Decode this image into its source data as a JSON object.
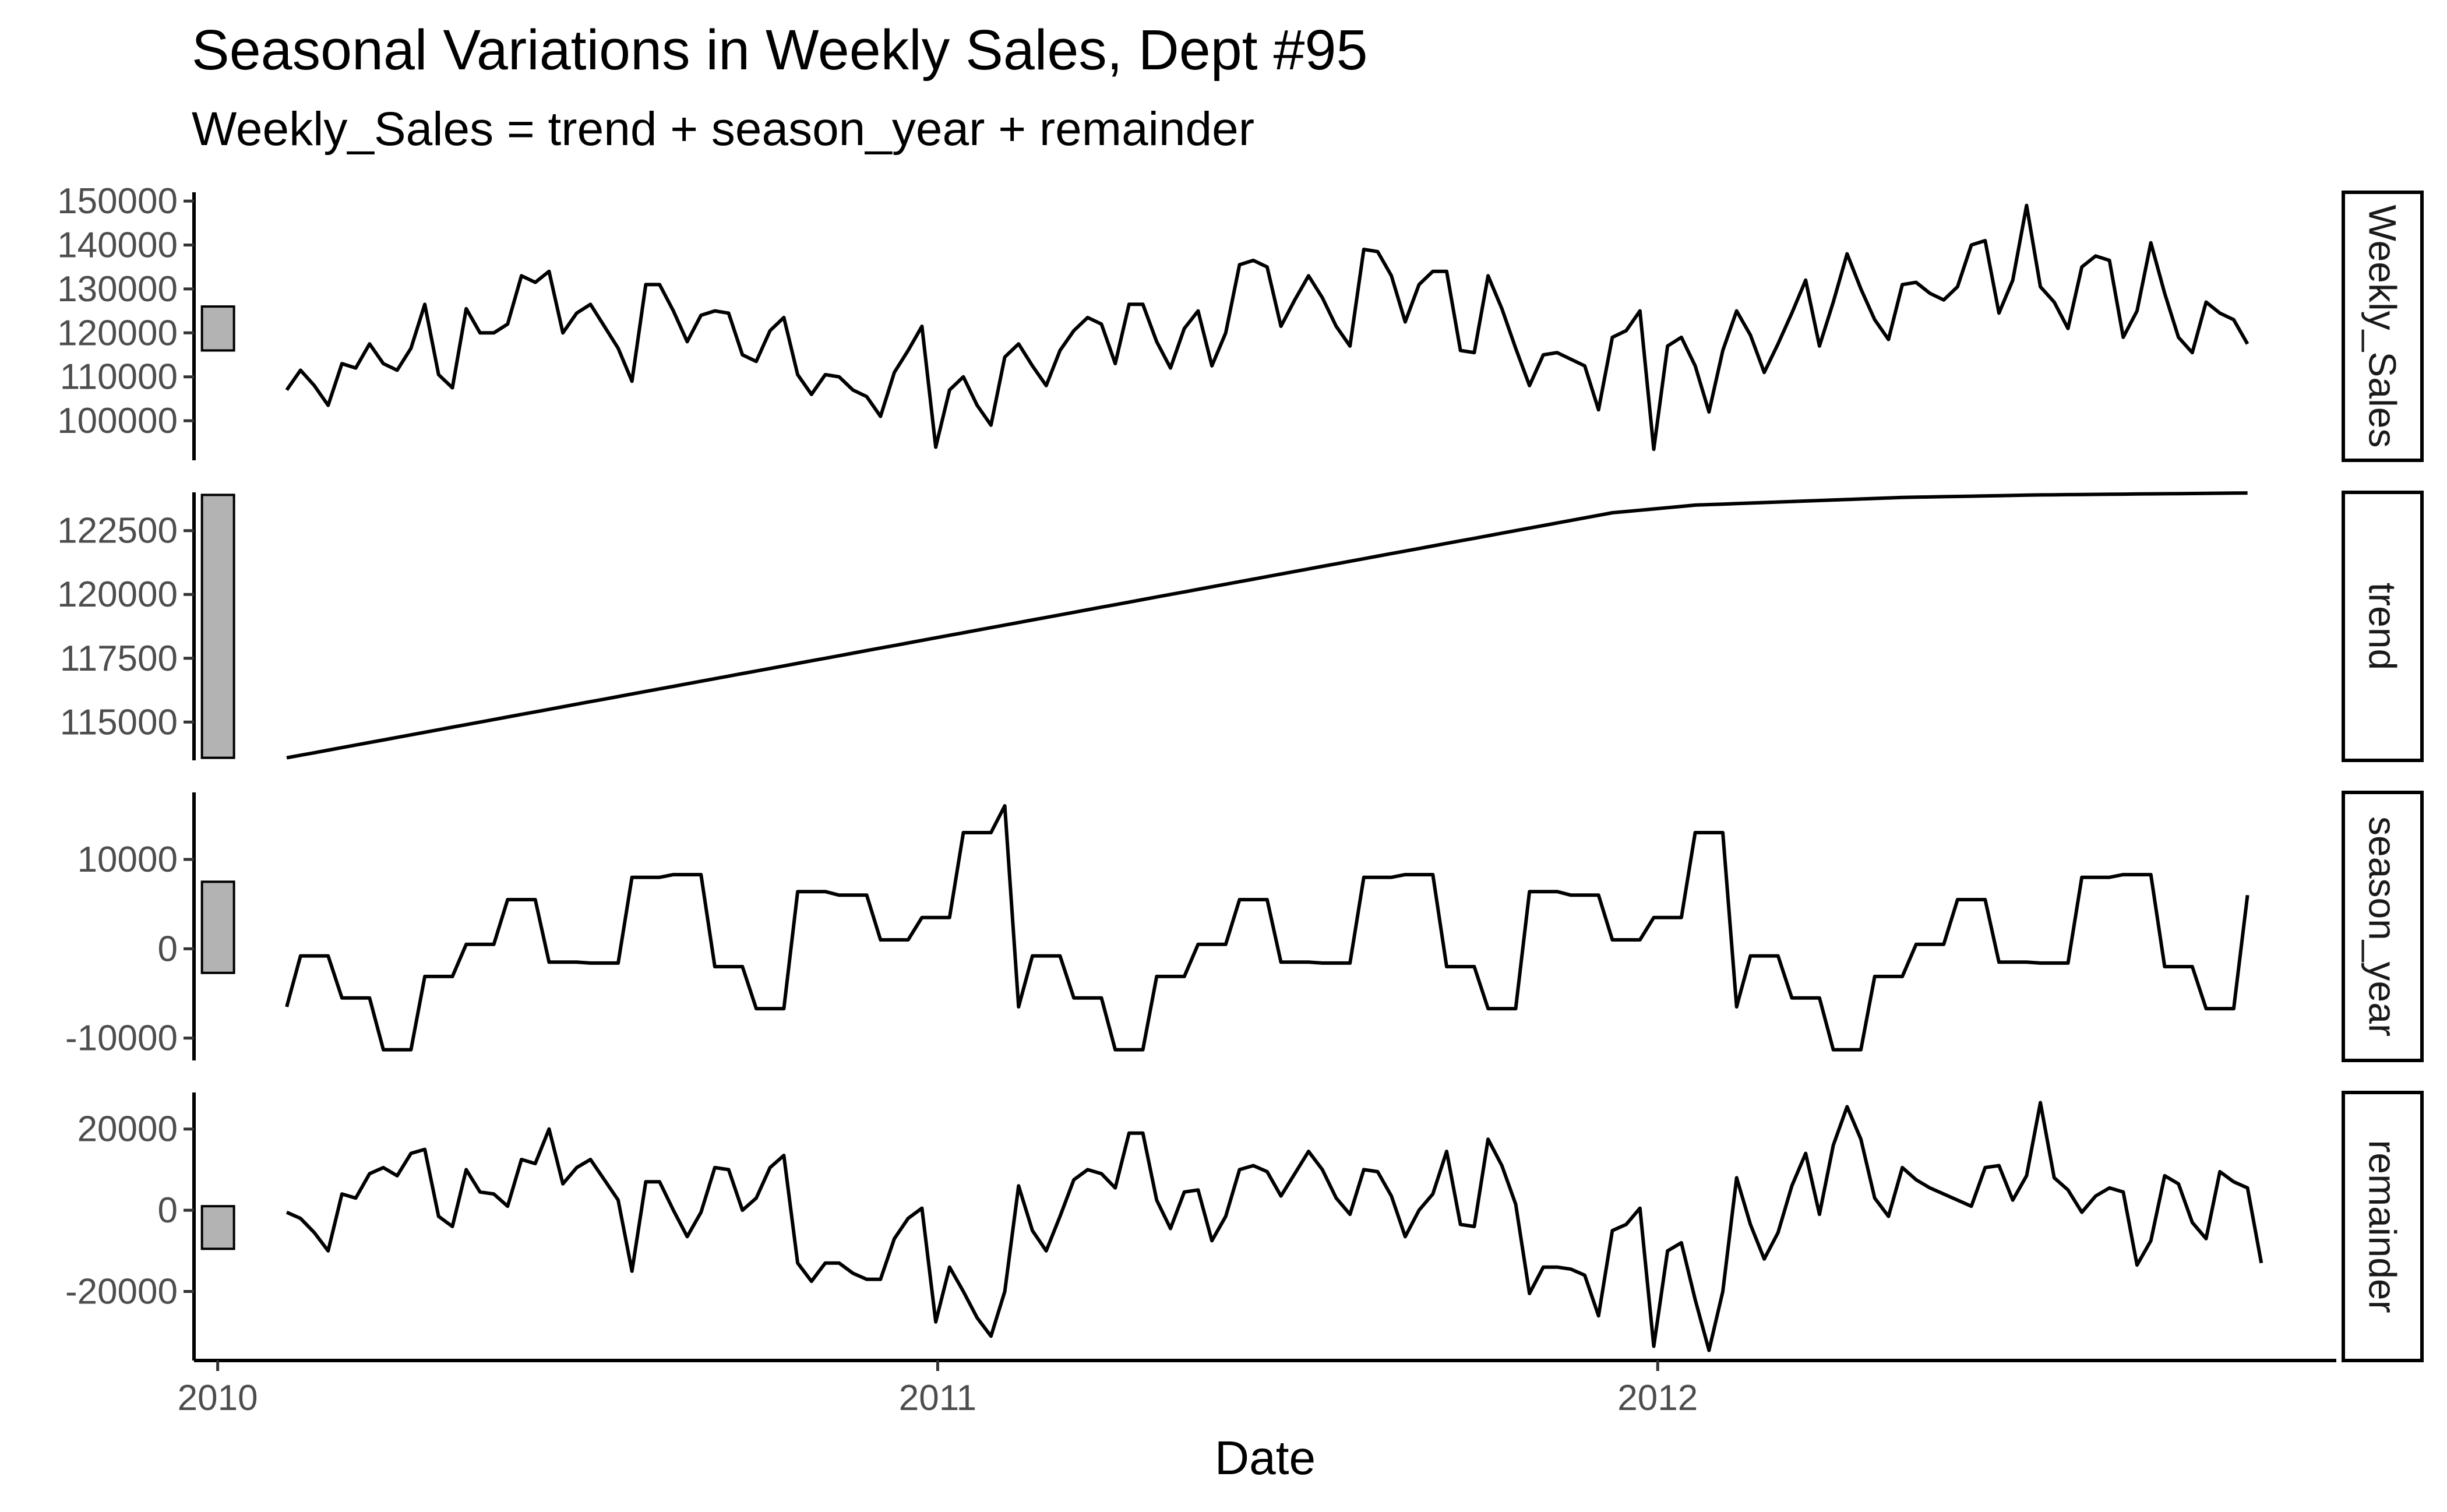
{
  "chart_data": {
    "type": "line",
    "title": "Seasonal Variations in Weekly Sales, Dept #95",
    "subtitle": "Weekly_Sales = trend + season_year + remainder",
    "xlabel": "Date",
    "x_ticks": [
      "2010",
      "2011",
      "2012"
    ],
    "x_start": "2010-02-05",
    "x_step_days": 7,
    "xlim": [
      "2009-12-20",
      "2012-12-10"
    ],
    "panels": [
      {
        "name": "Weekly_Sales",
        "ylim": [
          91000,
          152000
        ],
        "y_ticks": [
          "100000",
          "110000",
          "120000",
          "130000",
          "140000",
          "150000"
        ],
        "range_bar": [
          116000,
          126000
        ],
        "values": [
          107000,
          111500,
          108000,
          103500,
          113000,
          112000,
          117500,
          113000,
          111500,
          116500,
          126500,
          110500,
          107500,
          125500,
          120000,
          120000,
          122000,
          133000,
          131500,
          134000,
          120000,
          124500,
          126500,
          121500,
          116500,
          109000,
          131000,
          131000,
          125000,
          118000,
          124000,
          125000,
          124500,
          115000,
          113500,
          120500,
          123500,
          110500,
          106000,
          110500,
          110000,
          107000,
          105500,
          101000,
          111000,
          116000,
          121500,
          94000,
          107000,
          110000,
          103500,
          99000,
          114500,
          117500,
          112500,
          108000,
          116000,
          120500,
          123500,
          122000,
          113000,
          126500,
          126500,
          118000,
          112000,
          121000,
          125000,
          112500,
          120000,
          135500,
          136500,
          135000,
          121500,
          127500,
          133000,
          128000,
          121500,
          117000,
          139000,
          138500,
          133000,
          122500,
          131000,
          134000,
          134000,
          116000,
          115500,
          133000,
          125500,
          116500,
          108000,
          115000,
          115500,
          114000,
          112500,
          102500,
          119000,
          120500,
          125000,
          93500,
          117000,
          119000,
          112500,
          102000,
          116000,
          125000,
          119500,
          111000,
          117500,
          124500,
          132000,
          117000,
          127000,
          138000,
          130000,
          123000,
          118500,
          131000,
          131500,
          129000,
          127500,
          130500,
          140000,
          141000,
          124500,
          132000,
          149000,
          130500,
          127000,
          121000,
          135000,
          137500,
          136500,
          119000,
          125000,
          140500,
          129000,
          119000,
          115500,
          127000,
          124500,
          123000,
          117500
        ]
      },
      {
        "name": "trend",
        "ylim": [
          113500,
          124000
        ],
        "y_ticks": [
          "115000",
          "117500",
          "120000",
          "122500"
        ],
        "range_bar": [
          113600,
          123900
        ],
        "values": [
          113600,
          113700,
          113800,
          113900,
          114000,
          114100,
          114200,
          114300,
          114400,
          114500,
          114600,
          114700,
          114800,
          114900,
          115000,
          115100,
          115200,
          115300,
          115400,
          115500,
          115600,
          115700,
          115800,
          115900,
          116000,
          116100,
          116200,
          116300,
          116400,
          116500,
          116600,
          116700,
          116800,
          116900,
          117000,
          117100,
          117200,
          117300,
          117400,
          117500,
          117600,
          117700,
          117800,
          117900,
          118000,
          118100,
          118200,
          118300,
          118400,
          118500,
          118600,
          118700,
          118800,
          118900,
          119000,
          119100,
          119200,
          119300,
          119400,
          119500,
          119600,
          119700,
          119800,
          119900,
          120000,
          120100,
          120200,
          120300,
          120400,
          120500,
          120600,
          120700,
          120800,
          120900,
          121000,
          121100,
          121200,
          121300,
          121400,
          121500,
          121600,
          121700,
          121800,
          121900,
          122000,
          122100,
          122200,
          122300,
          122400,
          122500,
          122600,
          122700,
          122800,
          122900,
          123000,
          123100,
          123200,
          123250,
          123300,
          123350,
          123400,
          123450,
          123500,
          123520,
          123540,
          123560,
          123580,
          123600,
          123620,
          123640,
          123660,
          123680,
          123700,
          123720,
          123740,
          123760,
          123780,
          123800,
          123810,
          123820,
          123830,
          123840,
          123850,
          123860,
          123870,
          123880,
          123890,
          123900,
          123905,
          123910,
          123915,
          123920,
          123925,
          123930,
          123935,
          123940,
          123945,
          123950,
          123955,
          123960,
          123965,
          123970,
          123975
        ]
      },
      {
        "name": "season_year",
        "ylim": [
          -12500,
          17500
        ],
        "y_ticks": [
          "-10000",
          "0",
          "10000"
        ],
        "range_bar": [
          -2700,
          7500
        ],
        "values": [
          -6500,
          -800,
          -800,
          -800,
          -5500,
          -5500,
          -5500,
          -11300,
          -11300,
          -11300,
          -3100,
          -3100,
          -3100,
          500,
          500,
          500,
          5500,
          5500,
          5500,
          -1500,
          -1500,
          -1500,
          -1600,
          -1600,
          -1600,
          8000,
          8000,
          8000,
          8300,
          8300,
          8300,
          -2000,
          -2000,
          -2000,
          -6700,
          -6700,
          -6700,
          6400,
          6400,
          6400,
          6000,
          6000,
          6000,
          1000,
          1000,
          1000,
          3500,
          3500,
          3500,
          13000,
          13000,
          13000,
          16000,
          -6500,
          -800,
          -800,
          -800,
          -5500,
          -5500,
          -5500,
          -11300,
          -11300,
          -11300,
          -3100,
          -3100,
          -3100,
          500,
          500,
          500,
          5500,
          5500,
          5500,
          -1500,
          -1500,
          -1500,
          -1600,
          -1600,
          -1600,
          8000,
          8000,
          8000,
          8300,
          8300,
          8300,
          -2000,
          -2000,
          -2000,
          -6700,
          -6700,
          -6700,
          6400,
          6400,
          6400,
          6000,
          6000,
          6000,
          1000,
          1000,
          1000,
          3500,
          3500,
          3500,
          13000,
          13000,
          13000,
          -6500,
          -800,
          -800,
          -800,
          -5500,
          -5500,
          -5500,
          -11300,
          -11300,
          -11300,
          -3100,
          -3100,
          -3100,
          500,
          500,
          500,
          5500,
          5500,
          5500,
          -1500,
          -1500,
          -1500,
          -1600,
          -1600,
          -1600,
          8000,
          8000,
          8000,
          8300,
          8300,
          8300,
          -2000,
          -2000,
          -2000,
          -6700,
          -6700,
          -6700,
          6000
        ]
      },
      {
        "name": "remainder",
        "ylim": [
          -37000,
          29000
        ],
        "y_ticks": [
          "-20000",
          "0",
          "20000"
        ],
        "range_bar": [
          -9500,
          1000
        ],
        "values": [
          -500,
          -2000,
          -5500,
          -10000,
          4000,
          3000,
          9000,
          10500,
          8500,
          14000,
          15000,
          -1500,
          -4000,
          10000,
          4500,
          4000,
          1000,
          12500,
          11500,
          20000,
          6500,
          10500,
          12500,
          7500,
          2500,
          -15000,
          7000,
          7000,
          0,
          -6500,
          -500,
          10500,
          10000,
          0,
          3000,
          10500,
          13500,
          -13000,
          -17500,
          -13000,
          -13000,
          -15500,
          -17000,
          -17000,
          -7000,
          -2000,
          500,
          -27500,
          -14000,
          -20000,
          -26500,
          -31000,
          -20000,
          6000,
          -5000,
          -10000,
          -1500,
          7500,
          10000,
          9000,
          5500,
          19000,
          19000,
          2500,
          -4500,
          4500,
          5000,
          -7500,
          -1500,
          10000,
          11000,
          9500,
          3500,
          9000,
          14500,
          10000,
          3000,
          -1000,
          10000,
          9500,
          3500,
          -6500,
          0,
          4000,
          14500,
          -3500,
          -4000,
          17500,
          11000,
          1500,
          -20500,
          -14000,
          -14000,
          -14500,
          -16000,
          -26000,
          -5000,
          -3500,
          500,
          -33500,
          -10000,
          -8000,
          -22000,
          -34500,
          -20000,
          8000,
          -3500,
          -12000,
          -5500,
          6000,
          14000,
          -1000,
          16000,
          25500,
          17500,
          3000,
          -1500,
          10500,
          7500,
          5500,
          4000,
          2500,
          1000,
          10500,
          11000,
          2500,
          8500,
          26500,
          8000,
          5000,
          -500,
          3500,
          5500,
          4500,
          -13500,
          -7500,
          8500,
          6500,
          -3000,
          -7000,
          9500,
          7000,
          5500,
          -13000
        ]
      }
    ],
    "style": {
      "line_color": "#000000",
      "bar_fill": "#b3b3b3",
      "background": "#ffffff"
    }
  }
}
